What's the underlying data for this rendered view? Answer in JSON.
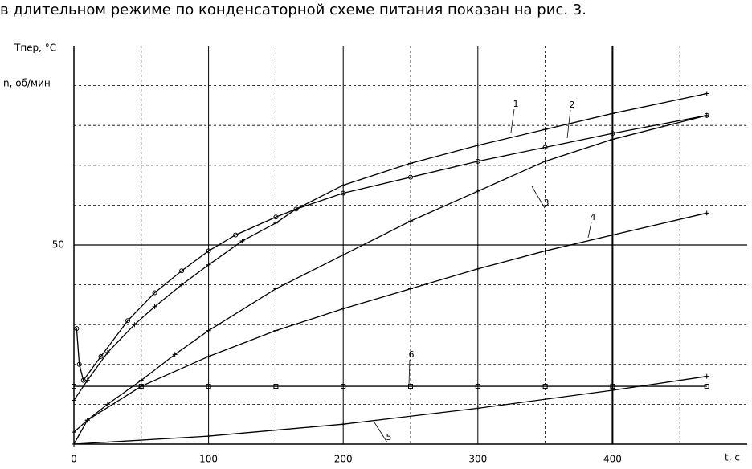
{
  "intro_text": "в длительном режиме по конденсаторной схеме питания показан на рис. 3.",
  "chart_data": {
    "type": "line",
    "y_labels": [
      "Тпер, °С",
      "n, об/мин"
    ],
    "x_label": "t, c",
    "xlim": [
      0,
      500
    ],
    "ylim": [
      0,
      100
    ],
    "xticks": [
      0,
      100,
      200,
      300,
      400
    ],
    "yticks": [
      50
    ],
    "x_minor_ticks": [
      50,
      150,
      250,
      350,
      450
    ],
    "y_minor_ticks": [
      10,
      20,
      30,
      40,
      60,
      70,
      80,
      90
    ],
    "grid": true,
    "series": [
      {
        "name": "1",
        "color": "#000000",
        "marker": "plus",
        "x": [
          0,
          10,
          25,
          45,
          60,
          80,
          100,
          125,
          150,
          165,
          200,
          250,
          300,
          350,
          400,
          470
        ],
        "values": [
          11,
          16,
          23,
          30,
          34.5,
          40,
          45,
          51,
          55.5,
          59,
          65,
          70.5,
          75,
          79,
          83,
          88
        ]
      },
      {
        "name": "2",
        "color": "#000000",
        "marker": "circle",
        "x": [
          2,
          4,
          7,
          20,
          40,
          60,
          80,
          100,
          120,
          150,
          165,
          200,
          250,
          300,
          350,
          400,
          470
        ],
        "values": [
          29,
          20,
          16,
          22,
          31,
          38,
          43.5,
          48.5,
          52.5,
          57,
          59,
          63,
          67,
          71,
          74.5,
          78,
          82.5
        ]
      },
      {
        "name": "3",
        "color": "#000000",
        "marker": "plus",
        "x": [
          0,
          10,
          25,
          50,
          75,
          100,
          150,
          200,
          250,
          300,
          350,
          400,
          470
        ],
        "values": [
          0,
          6,
          10,
          16,
          22.5,
          28.5,
          39,
          47.5,
          56,
          63.5,
          71,
          76.5,
          82.5
        ]
      },
      {
        "name": "4",
        "color": "#000000",
        "marker": "plus",
        "x": [
          0,
          10,
          50,
          100,
          150,
          200,
          250,
          300,
          350,
          400,
          470
        ],
        "values": [
          3,
          6,
          14.5,
          22,
          28.5,
          34,
          39,
          44,
          48.5,
          52.5,
          58
        ]
      },
      {
        "name": "5",
        "color": "#000000",
        "marker": "plus",
        "x": [
          0,
          100,
          200,
          300,
          400,
          470
        ],
        "values": [
          0,
          2,
          5,
          9,
          13.5,
          17
        ]
      },
      {
        "name": "6",
        "color": "#000000",
        "marker": "square",
        "x": [
          0,
          50,
          100,
          150,
          200,
          250,
          300,
          350,
          400,
          470
        ],
        "values": [
          14.5,
          14.5,
          14.5,
          14.5,
          14.5,
          14.5,
          14.5,
          14.5,
          14.5,
          14.5
        ]
      }
    ]
  }
}
